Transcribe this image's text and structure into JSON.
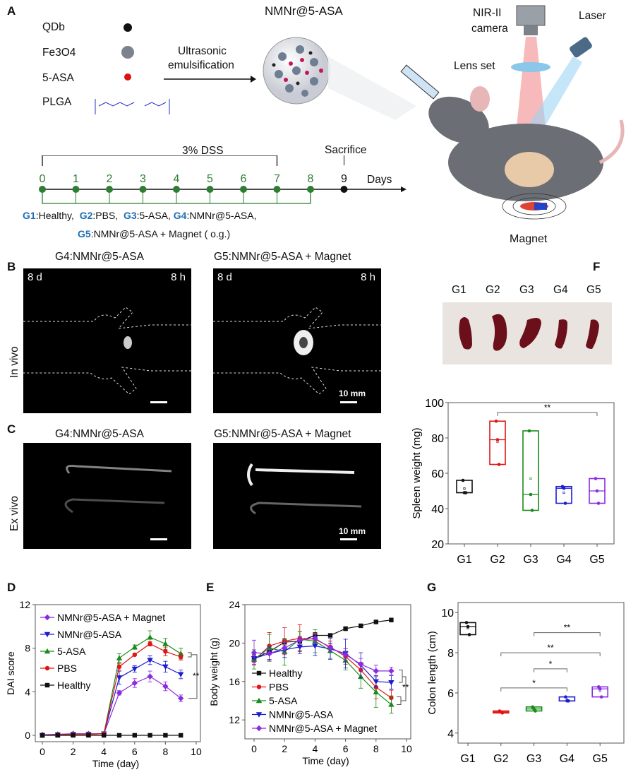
{
  "panels": {
    "a": "A",
    "b": "B",
    "c": "C",
    "d": "D",
    "e": "E",
    "f": "F",
    "g": "G"
  },
  "schematic": {
    "components": [
      {
        "label": "QDb",
        "color": "#111111"
      },
      {
        "label": "Fe3O4",
        "color": "#8a8f96"
      },
      {
        "label": "5-ASA",
        "color": "#e01010"
      },
      {
        "label": "PLGA",
        "color": "#2030c0"
      }
    ],
    "arrow_label_1": "Ultrasonic",
    "arrow_label_2": "emulsification",
    "nanoparticle": "NMNr@5-ASA",
    "camera_1": "NIR-II",
    "camera_2": "camera",
    "laser": "Laser",
    "lens": "Lens set",
    "magnet": "Magnet"
  },
  "timeline": {
    "dss": "3% DSS",
    "sacrifice": "Sacrifice",
    "days_label": "Days",
    "days": [
      "0",
      "1",
      "2",
      "3",
      "4",
      "5",
      "6",
      "7",
      "8",
      "9"
    ],
    "green": "#2e7d32",
    "groups_line1": [
      {
        "id": "G1",
        "name": ":Healthy,"
      },
      {
        "id": "G2",
        "name": ":PBS,"
      },
      {
        "id": "G3",
        "name": ":5-ASA,"
      },
      {
        "id": "G4",
        "name": ":NMNr@5-ASA,"
      }
    ],
    "groups_line2": {
      "id": "G5",
      "name": ":NMNr@5-ASA + Magnet  ( o.g.)"
    }
  },
  "imaging": {
    "b": {
      "row_label": "In vivo",
      "left_title": "G4:NMNr@5-ASA",
      "right_title": "G5:NMNr@5-ASA + Magnet",
      "day": "8 d",
      "hour": "8 h",
      "scale": "10 mm"
    },
    "c": {
      "row_label": "Ex vivo",
      "left_title": "G4:NMNr@5-ASA",
      "right_title": "G5:NMNr@5-ASA + Magnet",
      "scale": "10 mm"
    }
  },
  "spleen_photo": {
    "labels": [
      "G1",
      "G2",
      "G3",
      "G4",
      "G5"
    ]
  },
  "chart_data": [
    {
      "id": "D",
      "type": "line",
      "xlabel": "Time (day)",
      "ylabel": "DAI score",
      "xlim": [
        0,
        10
      ],
      "ylim": [
        0,
        12
      ],
      "xticks": [
        "0",
        "2",
        "4",
        "6",
        "8",
        "10"
      ],
      "yticks": [
        "0",
        "4",
        "8",
        "12"
      ],
      "legend": "top-left",
      "significance": "**",
      "x": [
        0,
        1,
        2,
        3,
        4,
        5,
        6,
        7,
        8,
        9
      ],
      "series": [
        {
          "name": "NMNr@5-ASA + Magnet",
          "color": "#8a2be2",
          "marker": "diamond",
          "values": [
            0.05,
            0.1,
            0.15,
            0.15,
            0.15,
            3.9,
            4.8,
            5.4,
            4.5,
            3.4
          ],
          "err": [
            0,
            0,
            0,
            0,
            0,
            0.2,
            0.4,
            0.5,
            0.4,
            0.3
          ]
        },
        {
          "name": "NMNr@5-ASA",
          "color": "#1c1cd0",
          "marker": "tri-down",
          "values": [
            0,
            0.05,
            0.1,
            0.1,
            0.15,
            5.3,
            6.1,
            6.9,
            6.3,
            5.6
          ],
          "err": [
            0,
            0,
            0,
            0,
            0,
            0.6,
            0.3,
            0.4,
            0.5,
            0.4
          ]
        },
        {
          "name": "5-ASA",
          "color": "#1a8a1a",
          "marker": "tri-up",
          "values": [
            0,
            0.05,
            0.1,
            0.1,
            0.15,
            7.1,
            8.1,
            9.0,
            8.4,
            7.5
          ],
          "err": [
            0,
            0,
            0,
            0,
            0,
            0.4,
            0.2,
            0.6,
            0.5,
            0.5
          ]
        },
        {
          "name": "PBS",
          "color": "#e01515",
          "marker": "circle",
          "values": [
            0,
            0.05,
            0.1,
            0.1,
            0.15,
            6.3,
            7.4,
            8.4,
            7.7,
            7.2
          ],
          "err": [
            0,
            0,
            0,
            0,
            0,
            0.3,
            0.1,
            0.2,
            0.4,
            0.3
          ]
        },
        {
          "name": "Healthy",
          "color": "#111111",
          "marker": "square",
          "values": [
            0,
            0,
            0,
            0,
            0,
            0,
            0,
            0,
            0,
            0
          ],
          "err": [
            0,
            0,
            0,
            0,
            0,
            0,
            0,
            0,
            0,
            0
          ]
        }
      ]
    },
    {
      "id": "E",
      "type": "line",
      "xlabel": "Time (day)",
      "ylabel": "Body weight (g)",
      "xlim": [
        0,
        10
      ],
      "ylim": [
        10,
        24
      ],
      "xticks": [
        "0",
        "2",
        "4",
        "6",
        "8",
        "10"
      ],
      "yticks": [
        "12",
        "16",
        "20",
        "24"
      ],
      "legend": "bottom-left",
      "significance": "**",
      "x": [
        0,
        1,
        2,
        3,
        4,
        5,
        6,
        7,
        8,
        9
      ],
      "series": [
        {
          "name": "Healthy",
          "color": "#111111",
          "marker": "square",
          "values": [
            18.4,
            19.1,
            20.1,
            20.2,
            20.8,
            20.8,
            21.5,
            21.8,
            22.2,
            22.4
          ],
          "err": [
            0.3,
            0.3,
            0.3,
            1.0,
            0.3,
            0.1,
            0.2,
            0.1,
            0.1,
            0.2
          ]
        },
        {
          "name": "PBS",
          "color": "#e01515",
          "marker": "circle",
          "values": [
            18.2,
            19.7,
            20.2,
            20.5,
            20.4,
            19.6,
            18.6,
            17.2,
            15.4,
            14.3
          ],
          "err": [
            0.4,
            1.4,
            1.4,
            1.4,
            0.6,
            0.6,
            0.8,
            0.8,
            1.2,
            0.8
          ]
        },
        {
          "name": "5-ASA",
          "color": "#1a8a1a",
          "marker": "tri-up",
          "values": [
            18.3,
            19.5,
            19.1,
            20.4,
            20.2,
            19.2,
            18.2,
            16.5,
            14.9,
            13.6
          ],
          "err": [
            1.0,
            1.4,
            1.4,
            0.8,
            1.2,
            0.8,
            1.0,
            1.2,
            1.6,
            0.9
          ]
        },
        {
          "name": "NMNr@5-ASA",
          "color": "#1c1cd0",
          "marker": "tri-down",
          "values": [
            18.4,
            18.9,
            19.3,
            19.6,
            19.7,
            19.4,
            18.9,
            17.7,
            16.0,
            15.9
          ],
          "err": [
            0.4,
            0.7,
            0.8,
            0.7,
            1.0,
            1.1,
            1.5,
            1.3,
            0.6,
            0.7
          ]
        },
        {
          "name": "NMNr@5-ASA + Magnet",
          "color": "#8a2be2",
          "marker": "diamond",
          "values": [
            19.0,
            18.9,
            19.5,
            20.3,
            20.5,
            19.5,
            18.8,
            17.8,
            17.1,
            17.1
          ],
          "err": [
            1.3,
            0.6,
            0.6,
            0.4,
            0.4,
            0.4,
            0.6,
            0.6,
            0.6,
            0.4
          ]
        }
      ]
    },
    {
      "id": "F",
      "type": "box",
      "ylabel": "Spleen weight (mg)",
      "ylim": [
        20,
        100
      ],
      "yticks": [
        "20",
        "40",
        "60",
        "80",
        "100"
      ],
      "categories": [
        "G1",
        "G2",
        "G3",
        "G4",
        "G5"
      ],
      "colors": [
        "#111111",
        "#e01515",
        "#1a8a1a",
        "#1c1cd0",
        "#8a2be2"
      ],
      "points": [
        [
          56,
          49,
          49
        ],
        [
          89.5,
          79,
          65
        ],
        [
          84,
          48,
          39
        ],
        [
          52.5,
          51.5,
          43
        ],
        [
          57,
          50,
          43
        ]
      ],
      "significance": [
        {
          "from": "G2",
          "to": "G5",
          "level": 100,
          "mark": "**"
        }
      ]
    },
    {
      "id": "G",
      "type": "box",
      "ylabel": "Colon length (cm)",
      "ylim": [
        3.5,
        10.5
      ],
      "yticks": [
        "4",
        "6",
        "8",
        "10"
      ],
      "categories": [
        "G1",
        "G2",
        "G3",
        "G4",
        "G5"
      ],
      "colors": [
        "#111111",
        "#e01515",
        "#1a8a1a",
        "#1c1cd0",
        "#8a2be2"
      ],
      "points": [
        [
          9.5,
          9.3,
          8.9
        ],
        [
          5.1,
          5.05,
          5.0
        ],
        [
          5.3,
          5.2,
          5.1
        ],
        [
          5.8,
          5.6,
          5.6
        ],
        [
          6.3,
          6.2,
          5.8
        ]
      ],
      "significance": [
        {
          "from": "G3",
          "to": "G5",
          "level": 9.0,
          "mark": "**"
        },
        {
          "from": "G2",
          "to": "G5",
          "level": 8.0,
          "mark": "**"
        },
        {
          "from": "G3",
          "to": "G4",
          "level": 7.2,
          "mark": "*"
        },
        {
          "from": "G2",
          "to": "G4",
          "level": 6.25,
          "mark": "*"
        }
      ]
    }
  ]
}
